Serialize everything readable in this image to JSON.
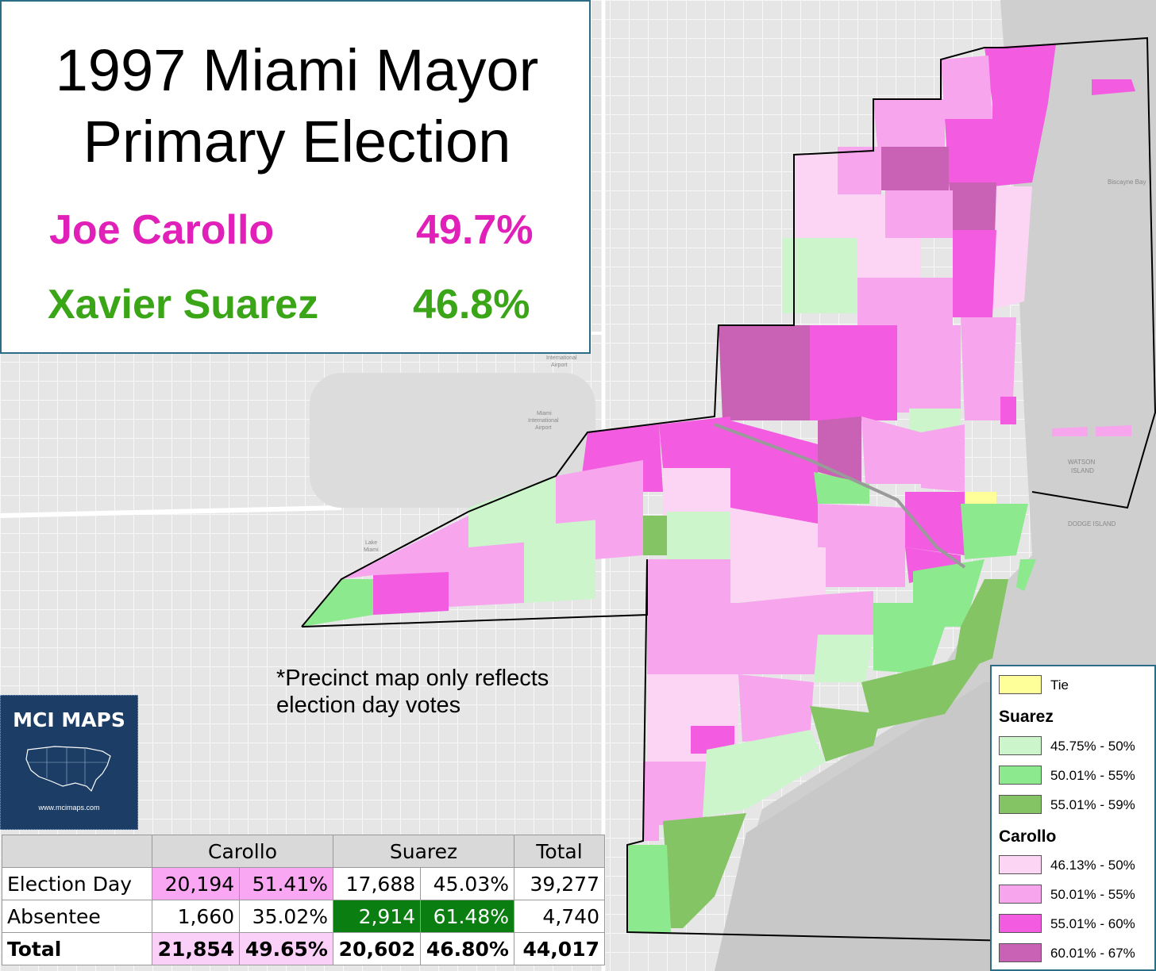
{
  "title": {
    "line1": "1997 Miami Mayor",
    "line2": "Primary Election"
  },
  "candidates": [
    {
      "name": "Joe Carollo",
      "pct": "49.7%",
      "color": "#e020b8"
    },
    {
      "name": "Xavier Suarez",
      "pct": "46.8%",
      "color": "#3aa516"
    }
  ],
  "note": {
    "line1": "*Precinct map only reflects",
    "line2": "election day votes"
  },
  "logo": {
    "text": "MCI MAPS",
    "url": "www.mcimaps.com",
    "icon": "usa-map-icon"
  },
  "map_labels": {
    "biscayne_bay": "Biscayne Bay",
    "watson1": "WATSON",
    "watson2": "ISLAND",
    "dodge": "DODGE ISLAND",
    "intl1": "International",
    "intl2": "Airport",
    "miami1": "Miami",
    "miami2": "International",
    "miami3": "Airport",
    "lake1": "Lake",
    "lake2": "Miami"
  },
  "table": {
    "headers": [
      "",
      "Carollo",
      "Suarez",
      "Total"
    ],
    "rows": [
      {
        "label": "Election Day",
        "carollo_votes": "20,194",
        "carollo_pct": "51.41%",
        "suarez_votes": "17,688",
        "suarez_pct": "45.03%",
        "total": "39,277"
      },
      {
        "label": "Absentee",
        "carollo_votes": "1,660",
        "carollo_pct": "35.02%",
        "suarez_votes": "2,914",
        "suarez_pct": "61.48%",
        "total": "4,740"
      },
      {
        "label": "Total",
        "carollo_votes": "21,854",
        "carollo_pct": "49.65%",
        "suarez_votes": "20,602",
        "suarez_pct": "46.80%",
        "total": "44,017"
      }
    ]
  },
  "legend": {
    "tie": {
      "label": "Tie",
      "color": "#ffff99"
    },
    "suarez": {
      "heading": "Suarez",
      "bins": [
        {
          "label": "45.75% - 50%",
          "color": "#ccf5cc"
        },
        {
          "label": "50.01% - 55%",
          "color": "#8de98d"
        },
        {
          "label": "55.01% - 59%",
          "color": "#84c464"
        }
      ]
    },
    "carollo": {
      "heading": "Carollo",
      "bins": [
        {
          "label": "46.13% - 50%",
          "color": "#fcd5f5"
        },
        {
          "label": "50.01% - 55%",
          "color": "#f7a6ee"
        },
        {
          "label": "55.01% - 60%",
          "color": "#f35be0"
        },
        {
          "label": "60.01% - 67%",
          "color": "#c962b4"
        }
      ]
    }
  }
}
